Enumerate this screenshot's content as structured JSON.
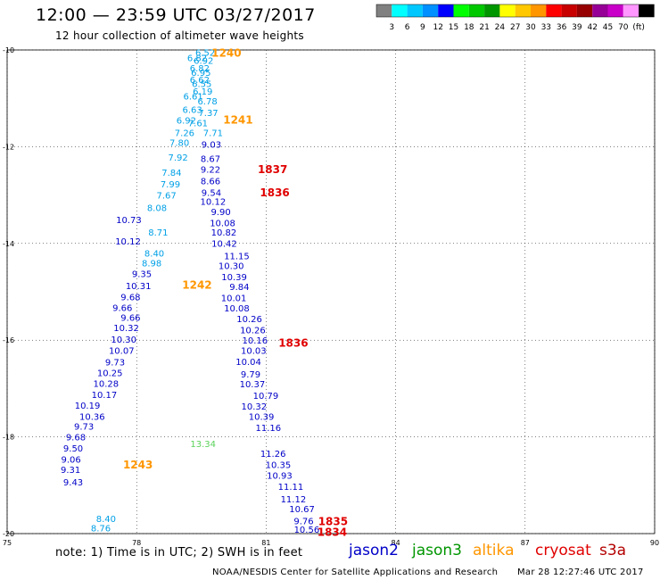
{
  "header": {
    "title": "12:00 — 23:59 UTC 03/27/2017",
    "subtitle": "12 hour collection of altimeter wave heights"
  },
  "colorbar": {
    "colors": [
      "#808080",
      "#00ffff",
      "#00c8ff",
      "#0090ff",
      "#0000ff",
      "#00ff00",
      "#00c800",
      "#009600",
      "#ffff00",
      "#ffc800",
      "#ff9600",
      "#ff0000",
      "#c80000",
      "#960000",
      "#960096",
      "#c800c8",
      "#ff96ff",
      "#000000"
    ],
    "labels": [
      "3",
      "6",
      "9",
      "12",
      "15",
      "18",
      "21",
      "24",
      "27",
      "30",
      "33",
      "36",
      "39",
      "42",
      "45",
      "70",
      "(ft)"
    ]
  },
  "chart_data": {
    "type": "scatter",
    "title": "12:00 — 23:59 UTC 03/27/2017",
    "subtitle": "12 hour collection of altimeter wave heights",
    "xlim": [
      75,
      90
    ],
    "ylim": [
      -20,
      -10
    ],
    "x_ticks": [
      "75",
      "78",
      "81",
      "84",
      "87",
      "90"
    ],
    "y_ticks": [
      "-10",
      "-12",
      "-14",
      "-16",
      "-18",
      "-20"
    ],
    "grid": true,
    "colors": {
      "jason2": "#0000c8",
      "jason3": "#009600",
      "altika": "#ff9600",
      "cryosat": "#e00000",
      "s3a": "#b40000",
      "swh_low": "#00a0e6",
      "swh_mid": "#0000c8",
      "swh_high": "#5ad25a"
    },
    "series": [
      {
        "name": "altika",
        "color": "#00a0e6",
        "points": [
          {
            "lon": 79.59,
            "lat": -10.05,
            "label": "6.52"
          },
          {
            "lon": 79.4,
            "lat": -10.16,
            "label": "6.82"
          },
          {
            "lon": 79.55,
            "lat": -10.21,
            "label": "6.92"
          },
          {
            "lon": 79.46,
            "lat": -10.37,
            "label": "6.82"
          },
          {
            "lon": 79.49,
            "lat": -10.46,
            "label": "6.95"
          },
          {
            "lon": 79.46,
            "lat": -10.61,
            "label": "6.62"
          },
          {
            "lon": 79.51,
            "lat": -10.69,
            "label": "6.55"
          },
          {
            "lon": 79.53,
            "lat": -10.85,
            "label": "6.19"
          },
          {
            "lon": 79.31,
            "lat": -10.95,
            "label": "6.61"
          },
          {
            "lon": 79.64,
            "lat": -11.05,
            "label": "6.78"
          },
          {
            "lon": 79.29,
            "lat": -11.23,
            "label": "6.63"
          },
          {
            "lon": 79.66,
            "lat": -11.29,
            "label": "7.37"
          },
          {
            "lon": 79.15,
            "lat": -11.45,
            "label": "6.92"
          },
          {
            "lon": 79.42,
            "lat": -11.5,
            "label": "7.61"
          },
          {
            "lon": 79.77,
            "lat": -11.71,
            "label": "7.71"
          },
          {
            "lon": 79.11,
            "lat": -11.71,
            "label": "7.26"
          },
          {
            "lon": 78.99,
            "lat": -11.91,
            "label": "7.80"
          },
          {
            "lon": 78.96,
            "lat": -12.21,
            "label": "7.92"
          },
          {
            "lon": 78.81,
            "lat": -12.53,
            "label": "7.84"
          },
          {
            "lon": 78.78,
            "lat": -12.77,
            "label": "7.99"
          },
          {
            "lon": 78.69,
            "lat": -13.0,
            "label": "7.67"
          },
          {
            "lon": 78.47,
            "lat": -13.26,
            "label": "8.08"
          },
          {
            "lon": 78.5,
            "lat": -13.76,
            "label": "8.71"
          },
          {
            "lon": 78.41,
            "lat": -14.2,
            "label": "8.40"
          },
          {
            "lon": 78.35,
            "lat": -14.4,
            "label": "8.98"
          },
          {
            "lon": 79.54,
            "lat": -18.14,
            "label": "13.34",
            "color": "#5ad25a"
          },
          {
            "lon": 77.29,
            "lat": -19.69,
            "label": "8.40"
          },
          {
            "lon": 77.17,
            "lat": -19.88,
            "label": "8.76"
          }
        ]
      },
      {
        "name": "jason2",
        "color": "#0000c8",
        "points": [
          {
            "lon": 79.73,
            "lat": -11.95,
            "label": "9.03"
          },
          {
            "lon": 79.71,
            "lat": -12.24,
            "label": "8.67"
          },
          {
            "lon": 79.71,
            "lat": -12.46,
            "label": "9.22"
          },
          {
            "lon": 79.71,
            "lat": -12.7,
            "label": "8.66"
          },
          {
            "lon": 79.73,
            "lat": -12.94,
            "label": "9.54"
          },
          {
            "lon": 79.77,
            "lat": -13.13,
            "label": "10.12"
          },
          {
            "lon": 79.95,
            "lat": -13.34,
            "label": "9.90"
          },
          {
            "lon": 79.99,
            "lat": -13.57,
            "label": "10.08"
          },
          {
            "lon": 80.02,
            "lat": -13.76,
            "label": "10.82"
          },
          {
            "lon": 80.03,
            "lat": -13.99,
            "label": "10.42"
          },
          {
            "lon": 80.32,
            "lat": -14.25,
            "label": "11.15"
          },
          {
            "lon": 80.19,
            "lat": -14.46,
            "label": "10.30"
          },
          {
            "lon": 80.26,
            "lat": -14.69,
            "label": "10.39"
          },
          {
            "lon": 80.38,
            "lat": -14.89,
            "label": "9.84"
          },
          {
            "lon": 80.25,
            "lat": -15.12,
            "label": "10.01"
          },
          {
            "lon": 80.32,
            "lat": -15.33,
            "label": "10.08"
          },
          {
            "lon": 80.61,
            "lat": -15.55,
            "label": "10.26"
          },
          {
            "lon": 80.69,
            "lat": -15.78,
            "label": "10.26"
          },
          {
            "lon": 80.74,
            "lat": -16.0,
            "label": "10.16"
          },
          {
            "lon": 80.71,
            "lat": -16.21,
            "label": "10.03"
          },
          {
            "lon": 80.59,
            "lat": -16.44,
            "label": "10.04"
          },
          {
            "lon": 80.64,
            "lat": -16.7,
            "label": "9.79"
          },
          {
            "lon": 80.68,
            "lat": -16.9,
            "label": "10.37"
          },
          {
            "lon": 80.99,
            "lat": -17.14,
            "label": "10.79"
          },
          {
            "lon": 80.72,
            "lat": -17.36,
            "label": "10.32"
          },
          {
            "lon": 80.89,
            "lat": -17.57,
            "label": "10.39"
          },
          {
            "lon": 81.05,
            "lat": -17.8,
            "label": "11.16"
          },
          {
            "lon": 81.16,
            "lat": -18.34,
            "label": "11.26"
          },
          {
            "lon": 81.28,
            "lat": -18.57,
            "label": "10.35"
          },
          {
            "lon": 81.31,
            "lat": -18.79,
            "label": "10.93"
          },
          {
            "lon": 81.57,
            "lat": -19.02,
            "label": "11.11"
          },
          {
            "lon": 81.63,
            "lat": -19.28,
            "label": "11.12"
          },
          {
            "lon": 81.83,
            "lat": -19.48,
            "label": "10.67"
          },
          {
            "lon": 81.87,
            "lat": -19.73,
            "label": "9.76"
          },
          {
            "lon": 81.94,
            "lat": -19.91,
            "label": "10.56"
          },
          {
            "lon": 77.82,
            "lat": -13.51,
            "label": "10.73"
          },
          {
            "lon": 77.8,
            "lat": -13.95,
            "label": "10.12"
          },
          {
            "lon": 78.12,
            "lat": -14.62,
            "label": "9.35"
          },
          {
            "lon": 78.04,
            "lat": -14.87,
            "label": "10.31"
          },
          {
            "lon": 77.86,
            "lat": -15.1,
            "label": "9.68"
          },
          {
            "lon": 77.67,
            "lat": -15.32,
            "label": "9.66"
          },
          {
            "lon": 77.86,
            "lat": -15.53,
            "label": "9.66"
          },
          {
            "lon": 77.76,
            "lat": -15.74,
            "label": "10.32"
          },
          {
            "lon": 77.7,
            "lat": -15.98,
            "label": "10.30"
          },
          {
            "lon": 77.65,
            "lat": -16.21,
            "label": "10.07"
          },
          {
            "lon": 77.5,
            "lat": -16.45,
            "label": "9.73"
          },
          {
            "lon": 77.38,
            "lat": -16.67,
            "label": "10.25"
          },
          {
            "lon": 77.29,
            "lat": -16.89,
            "label": "10.28"
          },
          {
            "lon": 77.25,
            "lat": -17.12,
            "label": "10.17"
          },
          {
            "lon": 76.86,
            "lat": -17.34,
            "label": "10.19"
          },
          {
            "lon": 76.97,
            "lat": -17.57,
            "label": "10.36"
          },
          {
            "lon": 76.78,
            "lat": -17.78,
            "label": "9.73"
          },
          {
            "lon": 76.59,
            "lat": -18.0,
            "label": "9.68"
          },
          {
            "lon": 76.53,
            "lat": -18.23,
            "label": "9.50"
          },
          {
            "lon": 76.48,
            "lat": -18.46,
            "label": "9.06"
          },
          {
            "lon": 76.47,
            "lat": -18.67,
            "label": "9.31"
          },
          {
            "lon": 76.53,
            "lat": -18.93,
            "label": "9.43"
          }
        ]
      }
    ],
    "annotations": [
      {
        "text": "1240",
        "lon": 80.08,
        "lat": -10.05,
        "color": "#ff9600"
      },
      {
        "text": "1241",
        "lon": 80.35,
        "lat": -11.43,
        "color": "#ff9600"
      },
      {
        "text": "1837",
        "lon": 81.15,
        "lat": -12.45,
        "color": "#e00000"
      },
      {
        "text": "1836",
        "lon": 81.2,
        "lat": -12.93,
        "color": "#e00000"
      },
      {
        "text": "1242",
        "lon": 79.4,
        "lat": -14.84,
        "color": "#ff9600"
      },
      {
        "text": "1836",
        "lon": 81.63,
        "lat": -16.04,
        "color": "#e00000"
      },
      {
        "text": "1243",
        "lon": 78.03,
        "lat": -18.56,
        "color": "#ff9600"
      },
      {
        "text": "1835",
        "lon": 82.55,
        "lat": -19.73,
        "color": "#e00000"
      },
      {
        "text": "1834",
        "lon": 82.53,
        "lat": -19.95,
        "color": "#e00000"
      }
    ]
  },
  "footer": {
    "note": "note:  1) Time is in UTC; 2) SWH is in feet",
    "legend": [
      {
        "label": "jason2",
        "color": "#0000c8"
      },
      {
        "label": "jason3",
        "color": "#009600"
      },
      {
        "label": "altika",
        "color": "#ff9600"
      },
      {
        "label": "cryosat",
        "color": "#e00000"
      },
      {
        "label": "s3a",
        "color": "#b40000"
      }
    ],
    "credit": "NOAA/NESDIS Center for Satellite Applications and Research",
    "timestamp": "Mar 28 12:27:46 UTC 2017"
  }
}
